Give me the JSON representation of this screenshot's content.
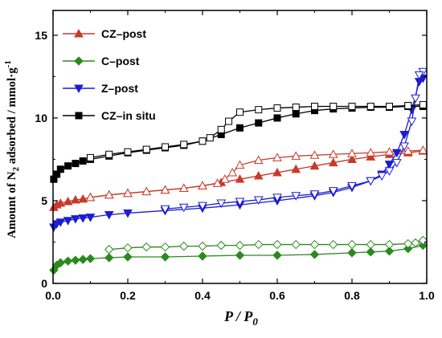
{
  "chart_data": {
    "type": "line",
    "xlabel": {
      "main": "P / P",
      "sub": "0"
    },
    "ylabel": {
      "prefix": "Amount of N",
      "sub": "2",
      "suffix": " adsorbed / mmol·g",
      "sup": "-1"
    },
    "xlim": [
      0.0,
      1.0
    ],
    "ylim": [
      0,
      16.5
    ],
    "xticks": [
      0.0,
      0.2,
      0.4,
      0.6,
      0.8,
      1.0
    ],
    "xtick_labels": [
      "0.0",
      "0.2",
      "0.4",
      "0.6",
      "0.8",
      "1.0"
    ],
    "yticks": [
      0,
      5,
      10,
      15
    ],
    "ytick_labels": [
      "0",
      "5",
      "10",
      "15"
    ],
    "grid": false,
    "legend_position": "top-left",
    "series": [
      {
        "name": "CZ–post",
        "color": "#c83a2a",
        "marker": "triangle-up",
        "adsorption": [
          [
            0.002,
            4.6
          ],
          [
            0.01,
            4.75
          ],
          [
            0.02,
            4.85
          ],
          [
            0.04,
            4.95
          ],
          [
            0.06,
            5.05
          ],
          [
            0.08,
            5.1
          ],
          [
            0.1,
            5.2
          ],
          [
            0.15,
            5.35
          ],
          [
            0.2,
            5.45
          ],
          [
            0.25,
            5.55
          ],
          [
            0.3,
            5.65
          ],
          [
            0.35,
            5.75
          ],
          [
            0.4,
            5.9
          ],
          [
            0.45,
            6.1
          ],
          [
            0.5,
            6.3
          ],
          [
            0.55,
            6.5
          ],
          [
            0.6,
            6.7
          ],
          [
            0.65,
            6.9
          ],
          [
            0.7,
            7.1
          ],
          [
            0.75,
            7.3
          ],
          [
            0.8,
            7.5
          ],
          [
            0.85,
            7.65
          ],
          [
            0.9,
            7.8
          ],
          [
            0.95,
            7.9
          ],
          [
            0.99,
            8.0
          ]
        ],
        "desorption": [
          [
            0.99,
            8.05
          ],
          [
            0.95,
            8.0
          ],
          [
            0.9,
            7.95
          ],
          [
            0.85,
            7.9
          ],
          [
            0.8,
            7.85
          ],
          [
            0.75,
            7.8
          ],
          [
            0.7,
            7.75
          ],
          [
            0.65,
            7.7
          ],
          [
            0.6,
            7.6
          ],
          [
            0.55,
            7.45
          ],
          [
            0.5,
            7.15
          ],
          [
            0.48,
            6.7
          ],
          [
            0.46,
            6.3
          ],
          [
            0.44,
            6.05
          ],
          [
            0.4,
            5.9
          ],
          [
            0.35,
            5.75
          ],
          [
            0.3,
            5.65
          ],
          [
            0.25,
            5.55
          ],
          [
            0.2,
            5.45
          ],
          [
            0.15,
            5.35
          ],
          [
            0.1,
            5.2
          ]
        ]
      },
      {
        "name": "C–post",
        "color": "#2a8a1e",
        "marker": "diamond",
        "adsorption": [
          [
            0.002,
            0.8
          ],
          [
            0.01,
            1.1
          ],
          [
            0.02,
            1.25
          ],
          [
            0.04,
            1.35
          ],
          [
            0.06,
            1.4
          ],
          [
            0.08,
            1.45
          ],
          [
            0.1,
            1.5
          ],
          [
            0.15,
            1.55
          ],
          [
            0.2,
            1.6
          ],
          [
            0.3,
            1.6
          ],
          [
            0.4,
            1.65
          ],
          [
            0.5,
            1.7
          ],
          [
            0.6,
            1.7
          ],
          [
            0.7,
            1.75
          ],
          [
            0.8,
            1.85
          ],
          [
            0.85,
            1.9
          ],
          [
            0.9,
            1.95
          ],
          [
            0.95,
            2.1
          ],
          [
            0.99,
            2.3
          ]
        ],
        "desorption": [
          [
            0.99,
            2.6
          ],
          [
            0.97,
            2.45
          ],
          [
            0.95,
            2.4
          ],
          [
            0.9,
            2.35
          ],
          [
            0.85,
            2.35
          ],
          [
            0.8,
            2.35
          ],
          [
            0.75,
            2.35
          ],
          [
            0.7,
            2.35
          ],
          [
            0.65,
            2.35
          ],
          [
            0.6,
            2.35
          ],
          [
            0.55,
            2.35
          ],
          [
            0.5,
            2.3
          ],
          [
            0.45,
            2.3
          ],
          [
            0.4,
            2.25
          ],
          [
            0.35,
            2.25
          ],
          [
            0.3,
            2.2
          ],
          [
            0.25,
            2.2
          ],
          [
            0.2,
            2.15
          ],
          [
            0.15,
            2.05
          ]
        ]
      },
      {
        "name": "Z–post",
        "color": "#1c1cd0",
        "marker": "triangle-down",
        "adsorption": [
          [
            0.002,
            3.4
          ],
          [
            0.01,
            3.6
          ],
          [
            0.02,
            3.7
          ],
          [
            0.04,
            3.8
          ],
          [
            0.06,
            3.9
          ],
          [
            0.08,
            3.95
          ],
          [
            0.1,
            4.0
          ],
          [
            0.15,
            4.15
          ],
          [
            0.2,
            4.25
          ],
          [
            0.3,
            4.4
          ],
          [
            0.4,
            4.55
          ],
          [
            0.5,
            4.75
          ],
          [
            0.6,
            5.0
          ],
          [
            0.7,
            5.3
          ],
          [
            0.75,
            5.5
          ],
          [
            0.8,
            5.8
          ],
          [
            0.85,
            6.2
          ],
          [
            0.88,
            6.6
          ],
          [
            0.9,
            7.2
          ],
          [
            0.92,
            7.9
          ],
          [
            0.94,
            9.0
          ],
          [
            0.96,
            10.5
          ],
          [
            0.98,
            12.2
          ],
          [
            0.99,
            12.4
          ]
        ],
        "desorption": [
          [
            0.99,
            12.8
          ],
          [
            0.98,
            12.6
          ],
          [
            0.97,
            11.2
          ],
          [
            0.96,
            9.8
          ],
          [
            0.94,
            8.3
          ],
          [
            0.92,
            7.3
          ],
          [
            0.9,
            6.8
          ],
          [
            0.88,
            6.5
          ],
          [
            0.85,
            6.2
          ],
          [
            0.8,
            5.9
          ],
          [
            0.75,
            5.6
          ],
          [
            0.7,
            5.4
          ],
          [
            0.65,
            5.3
          ],
          [
            0.6,
            5.2
          ],
          [
            0.55,
            5.05
          ],
          [
            0.5,
            4.95
          ],
          [
            0.45,
            4.85
          ],
          [
            0.4,
            4.7
          ],
          [
            0.35,
            4.6
          ],
          [
            0.3,
            4.5
          ]
        ]
      },
      {
        "name": "CZ–in situ",
        "color": "#000000",
        "marker": "square",
        "adsorption": [
          [
            0.002,
            6.3
          ],
          [
            0.01,
            6.6
          ],
          [
            0.02,
            6.9
          ],
          [
            0.04,
            7.1
          ],
          [
            0.06,
            7.25
          ],
          [
            0.08,
            7.4
          ],
          [
            0.1,
            7.5
          ],
          [
            0.15,
            7.7
          ],
          [
            0.2,
            7.9
          ],
          [
            0.25,
            8.05
          ],
          [
            0.3,
            8.2
          ],
          [
            0.35,
            8.35
          ],
          [
            0.4,
            8.6
          ],
          [
            0.45,
            9.0
          ],
          [
            0.5,
            9.4
          ],
          [
            0.55,
            9.7
          ],
          [
            0.6,
            10.0
          ],
          [
            0.65,
            10.25
          ],
          [
            0.7,
            10.45
          ],
          [
            0.75,
            10.55
          ],
          [
            0.8,
            10.6
          ],
          [
            0.85,
            10.65
          ],
          [
            0.9,
            10.65
          ],
          [
            0.95,
            10.7
          ],
          [
            0.99,
            10.7
          ]
        ],
        "desorption": [
          [
            0.99,
            10.8
          ],
          [
            0.95,
            10.75
          ],
          [
            0.9,
            10.7
          ],
          [
            0.85,
            10.7
          ],
          [
            0.8,
            10.7
          ],
          [
            0.75,
            10.7
          ],
          [
            0.7,
            10.7
          ],
          [
            0.65,
            10.65
          ],
          [
            0.6,
            10.6
          ],
          [
            0.55,
            10.5
          ],
          [
            0.5,
            10.35
          ],
          [
            0.47,
            9.8
          ],
          [
            0.45,
            9.3
          ],
          [
            0.42,
            8.8
          ],
          [
            0.4,
            8.6
          ],
          [
            0.35,
            8.4
          ],
          [
            0.3,
            8.25
          ],
          [
            0.25,
            8.1
          ],
          [
            0.2,
            7.95
          ],
          [
            0.15,
            7.8
          ],
          [
            0.1,
            7.6
          ]
        ]
      }
    ]
  }
}
